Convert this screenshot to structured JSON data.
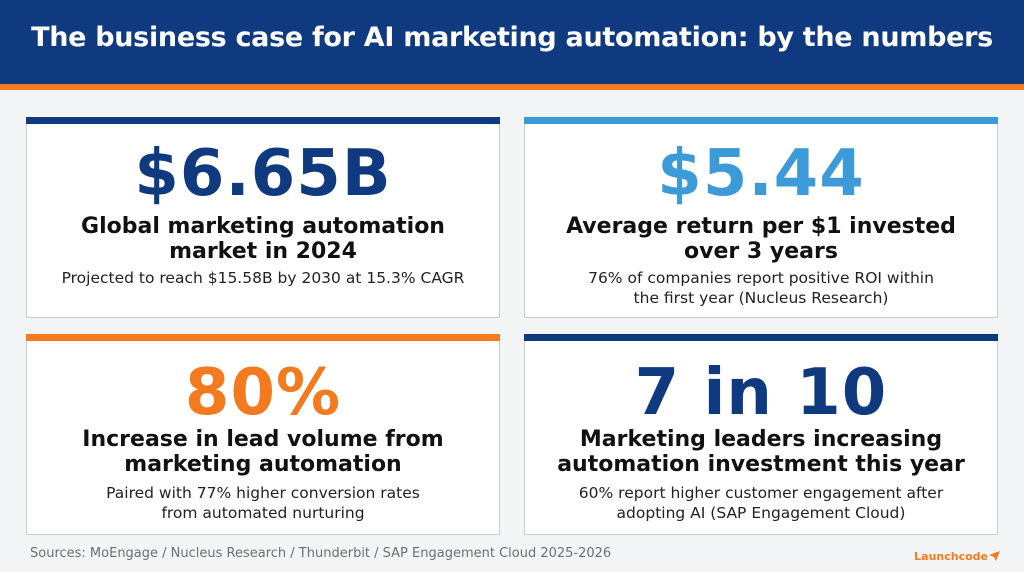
{
  "header": {
    "title": "The business case for AI marketing automation: by the numbers"
  },
  "colors": {
    "navy": "#0f3a80",
    "orange": "#f47a20",
    "light_blue": "#3d9ad8"
  },
  "cards": [
    {
      "value": "$6.65B",
      "label_line1": "Global marketing automation",
      "label_line2": "market in 2024",
      "desc_line1": "Projected to reach $15.58B by 2030 at 15.3% CAGR",
      "desc_line2": "",
      "accent": "navy"
    },
    {
      "value": "$5.44",
      "label_line1": "Average return per $1 invested",
      "label_line2": "over 3 years",
      "desc_line1": "76% of companies report positive ROI within",
      "desc_line2": "the first year (Nucleus Research)",
      "accent": "light_blue"
    },
    {
      "value": "80%",
      "label_line1": "Increase in lead volume from",
      "label_line2": "marketing automation",
      "desc_line1": "Paired with 77% higher conversion rates",
      "desc_line2": "from automated nurturing",
      "accent": "orange"
    },
    {
      "value": "7 in 10",
      "label_line1": "Marketing leaders increasing",
      "label_line2": "automation investment this year",
      "desc_line1": "60% report higher customer engagement after",
      "desc_line2": "adopting AI (SAP Engagement Cloud)",
      "accent": "navy"
    }
  ],
  "footer": {
    "sources": "Sources: MoEngage / Nucleus Research / Thunderbit / SAP Engagement Cloud 2025-2026",
    "logo_text": "Launchcode",
    "logo_icon": "paper-plane-icon"
  }
}
